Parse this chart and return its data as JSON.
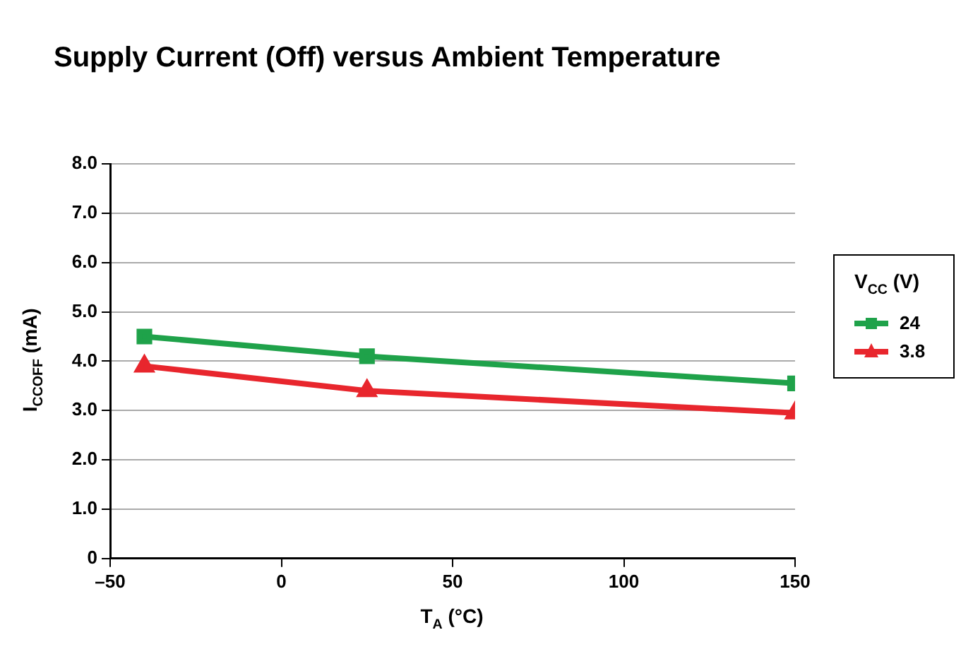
{
  "chart_data": {
    "type": "line",
    "title": "Supply Current (Off) versus Ambient Temperature",
    "xlabel": "T$_{A}$ (°C)",
    "ylabel": "I$_{CCOFF}$ (mA)",
    "legend_title": "V$_{CC}$ (V)",
    "x": [
      -40,
      25,
      150
    ],
    "series": [
      {
        "name": "24",
        "color": "#1fa24a",
        "marker": "square",
        "values": [
          4.5,
          4.1,
          3.55
        ]
      },
      {
        "name": "3.8",
        "color": "#e8262d",
        "marker": "triangle",
        "values": [
          3.9,
          3.4,
          2.95
        ]
      }
    ],
    "xlim": [
      -50,
      150
    ],
    "xticks": [
      {
        "value": -50,
        "label": "–50"
      },
      0,
      50,
      100,
      150
    ],
    "ylim": [
      0,
      8
    ],
    "yticks": [
      {
        "value": 0,
        "label": "0"
      },
      {
        "value": 1,
        "label": "1.0"
      },
      {
        "value": 2,
        "label": "2.0"
      },
      {
        "value": 3,
        "label": "3.0"
      },
      {
        "value": 4,
        "label": "4.0"
      },
      {
        "value": 5,
        "label": "5.0"
      },
      {
        "value": 6,
        "label": "6.0"
      },
      {
        "value": 7,
        "label": "7.0"
      },
      {
        "value": 8,
        "label": "8.0"
      }
    ],
    "grid": "y",
    "legend": "right",
    "line_style": "solid"
  }
}
